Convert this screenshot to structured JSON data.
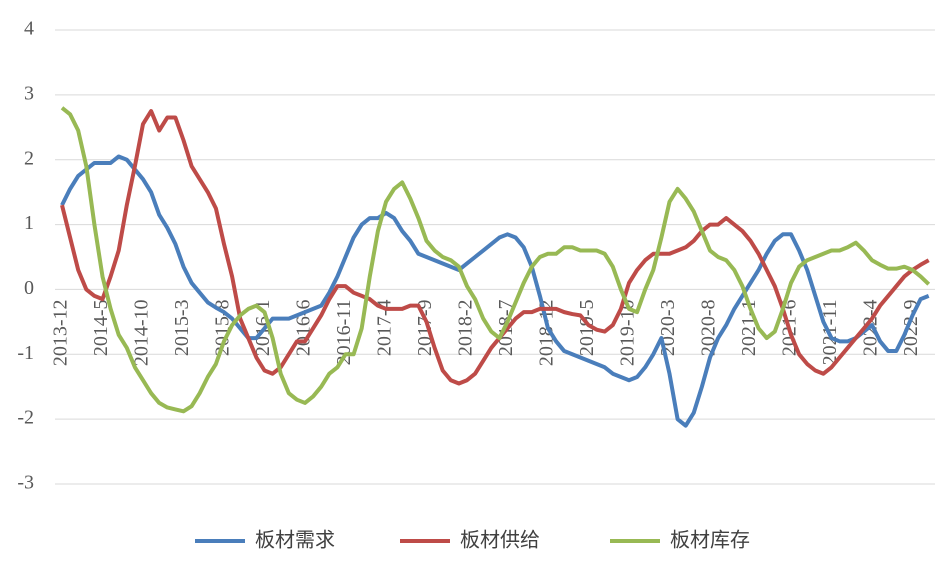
{
  "chart_data": {
    "type": "line",
    "categories": [
      "2013-12",
      null,
      null,
      null,
      null,
      "2014-5",
      null,
      null,
      null,
      null,
      "2014-10",
      null,
      null,
      null,
      null,
      "2015-3",
      null,
      null,
      null,
      null,
      "2015-8",
      null,
      null,
      null,
      null,
      "2016-1",
      null,
      null,
      null,
      null,
      "2016-6",
      null,
      null,
      null,
      null,
      "2016-11",
      null,
      null,
      null,
      null,
      "2017-4",
      null,
      null,
      null,
      null,
      "2017-9",
      null,
      null,
      null,
      null,
      "2018-2",
      null,
      null,
      null,
      null,
      "2018-7",
      null,
      null,
      null,
      null,
      "2018-12",
      null,
      null,
      null,
      null,
      "2019-5",
      null,
      null,
      null,
      null,
      "2019-10",
      null,
      null,
      null,
      null,
      "2020-3",
      null,
      null,
      null,
      null,
      "2020-8",
      null,
      null,
      null,
      null,
      "2021-1",
      null,
      null,
      null,
      null,
      "2021-6",
      null,
      null,
      null,
      null,
      "2021-11",
      null,
      null,
      null,
      null,
      "2022-4",
      null,
      null,
      null,
      null,
      "2022-9",
      null,
      null
    ],
    "series": [
      {
        "name": "板材需求",
        "color": "#4a7ebb",
        "values": [
          1.3,
          1.55,
          1.75,
          1.85,
          1.95,
          1.95,
          1.95,
          2.05,
          2.0,
          1.85,
          1.7,
          1.5,
          1.15,
          0.95,
          0.7,
          0.35,
          0.1,
          -0.05,
          -0.2,
          -0.28,
          -0.35,
          -0.45,
          -0.6,
          -0.75,
          -0.75,
          -0.6,
          -0.45,
          -0.45,
          -0.45,
          -0.4,
          -0.35,
          -0.3,
          -0.25,
          -0.05,
          0.2,
          0.5,
          0.8,
          1.0,
          1.1,
          1.1,
          1.18,
          1.1,
          0.9,
          0.75,
          0.55,
          0.5,
          0.45,
          0.4,
          0.35,
          0.3,
          0.4,
          0.5,
          0.6,
          0.7,
          0.8,
          0.85,
          0.8,
          0.65,
          0.35,
          -0.1,
          -0.6,
          -0.8,
          -0.95,
          -1.0,
          -1.05,
          -1.1,
          -1.15,
          -1.2,
          -1.3,
          -1.35,
          -1.4,
          -1.35,
          -1.2,
          -1.0,
          -0.75,
          -1.3,
          -2.0,
          -2.1,
          -1.9,
          -1.5,
          -1.05,
          -0.75,
          -0.55,
          -0.3,
          -0.1,
          0.1,
          0.3,
          0.55,
          0.75,
          0.85,
          0.85,
          0.6,
          0.3,
          -0.1,
          -0.5,
          -0.75,
          -0.8,
          -0.8,
          -0.75,
          -0.65,
          -0.55,
          -0.8,
          -0.95,
          -0.95,
          -0.7,
          -0.4,
          -0.15,
          -0.1
        ]
      },
      {
        "name": "板材供给",
        "color": "#be4b48",
        "values": [
          1.3,
          0.8,
          0.3,
          0.0,
          -0.1,
          -0.15,
          0.2,
          0.6,
          1.3,
          1.9,
          2.55,
          2.75,
          2.45,
          2.65,
          2.65,
          2.3,
          1.9,
          1.7,
          1.5,
          1.25,
          0.7,
          0.2,
          -0.45,
          -0.75,
          -1.05,
          -1.25,
          -1.3,
          -1.2,
          -1.0,
          -0.8,
          -0.8,
          -0.6,
          -0.4,
          -0.15,
          0.05,
          0.05,
          -0.05,
          -0.1,
          -0.15,
          -0.25,
          -0.3,
          -0.3,
          -0.3,
          -0.25,
          -0.25,
          -0.5,
          -0.9,
          -1.25,
          -1.4,
          -1.45,
          -1.4,
          -1.3,
          -1.1,
          -0.9,
          -0.75,
          -0.6,
          -0.45,
          -0.35,
          -0.35,
          -0.3,
          -0.3,
          -0.3,
          -0.35,
          -0.38,
          -0.4,
          -0.55,
          -0.62,
          -0.65,
          -0.55,
          -0.3,
          0.1,
          0.3,
          0.45,
          0.55,
          0.55,
          0.55,
          0.6,
          0.65,
          0.75,
          0.9,
          1.0,
          1.0,
          1.1,
          1.0,
          0.9,
          0.75,
          0.55,
          0.3,
          0.05,
          -0.3,
          -0.7,
          -1.0,
          -1.15,
          -1.25,
          -1.3,
          -1.2,
          -1.05,
          -0.9,
          -0.75,
          -0.6,
          -0.45,
          -0.25,
          -0.1,
          0.05,
          0.2,
          0.3,
          0.38,
          0.45
        ]
      },
      {
        "name": "板材库存",
        "color": "#98b954",
        "values": [
          2.8,
          2.7,
          2.45,
          1.9,
          1.0,
          0.2,
          -0.3,
          -0.7,
          -0.9,
          -1.2,
          -1.4,
          -1.6,
          -1.75,
          -1.82,
          -1.85,
          -1.88,
          -1.8,
          -1.6,
          -1.35,
          -1.15,
          -0.8,
          -0.55,
          -0.4,
          -0.3,
          -0.25,
          -0.35,
          -0.75,
          -1.3,
          -1.6,
          -1.7,
          -1.75,
          -1.65,
          -1.5,
          -1.3,
          -1.2,
          -1.0,
          -1.0,
          -0.6,
          0.2,
          0.9,
          1.35,
          1.55,
          1.65,
          1.4,
          1.1,
          0.75,
          0.6,
          0.5,
          0.45,
          0.35,
          0.05,
          -0.15,
          -0.45,
          -0.65,
          -0.75,
          -0.5,
          -0.2,
          0.1,
          0.35,
          0.5,
          0.55,
          0.55,
          0.65,
          0.65,
          0.6,
          0.6,
          0.6,
          0.55,
          0.35,
          0.0,
          -0.3,
          -0.35,
          0.0,
          0.3,
          0.8,
          1.35,
          1.55,
          1.4,
          1.2,
          0.9,
          0.6,
          0.5,
          0.45,
          0.3,
          0.05,
          -0.3,
          -0.6,
          -0.75,
          -0.65,
          -0.3,
          0.1,
          0.35,
          0.45,
          0.5,
          0.55,
          0.6,
          0.6,
          0.65,
          0.72,
          0.6,
          0.45,
          0.38,
          0.32,
          0.32,
          0.35,
          0.3,
          0.2,
          0.08
        ]
      }
    ],
    "ylim": [
      -3,
      4
    ],
    "yticks": [
      -3,
      -2,
      -1,
      0,
      1,
      2,
      3,
      4
    ],
    "grid": true,
    "legend": "bottom"
  }
}
